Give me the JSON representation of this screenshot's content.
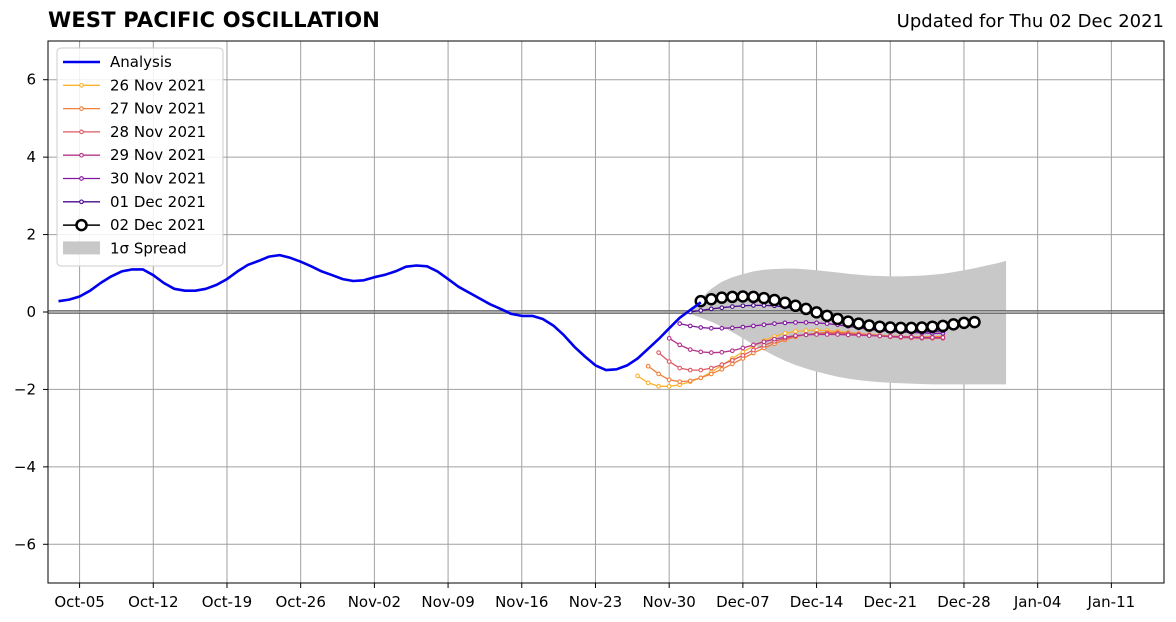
{
  "header": {
    "title": "WEST PACIFIC OSCILLATION",
    "updated": "Updated for Thu 02 Dec 2021"
  },
  "chart_data": {
    "type": "line",
    "title": "WEST PACIFIC OSCILLATION",
    "subtitle": "Updated for Thu 02 Dec 2021",
    "xlabel": "",
    "ylabel": "",
    "xlim": [
      "2021-10-02",
      "2022-01-16"
    ],
    "ylim": [
      -7,
      7
    ],
    "grid": true,
    "legend_position": "top-left",
    "x_ticks": [
      "Oct-05",
      "Oct-12",
      "Oct-19",
      "Oct-26",
      "Nov-02",
      "Nov-09",
      "Nov-16",
      "Nov-23",
      "Nov-30",
      "Dec-07",
      "Dec-14",
      "Dec-21",
      "Dec-28",
      "Jan-04",
      "Jan-11"
    ],
    "x_tick_dates": [
      "2021-10-05",
      "2021-10-12",
      "2021-10-19",
      "2021-10-26",
      "2021-11-02",
      "2021-11-09",
      "2021-11-16",
      "2021-11-23",
      "2021-11-30",
      "2021-12-07",
      "2021-12-14",
      "2021-12-21",
      "2021-12-28",
      "2022-01-04",
      "2022-01-11"
    ],
    "y_ticks": [
      6,
      4,
      2,
      0,
      -2,
      -4,
      -6
    ],
    "y_tick_labels": [
      "6",
      "4",
      "2",
      "0",
      "−2",
      "−4",
      "−6"
    ],
    "legend": [
      "Analysis",
      "26 Nov 2021",
      "27 Nov 2021",
      "28 Nov 2021",
      "29 Nov 2021",
      "30 Nov 2021",
      "01 Dec 2021",
      "02 Dec 2021",
      "1σ Spread"
    ],
    "analysis": {
      "name": "Analysis",
      "color": "#0000ee",
      "start": "2021-10-03",
      "values": [
        0.28,
        0.32,
        0.4,
        0.55,
        0.75,
        0.92,
        1.05,
        1.1,
        1.1,
        0.95,
        0.75,
        0.6,
        0.55,
        0.55,
        0.6,
        0.7,
        0.85,
        1.05,
        1.22,
        1.32,
        1.43,
        1.47,
        1.4,
        1.3,
        1.18,
        1.05,
        0.95,
        0.85,
        0.8,
        0.82,
        0.9,
        0.96,
        1.05,
        1.17,
        1.2,
        1.18,
        1.05,
        0.85,
        0.65,
        0.5,
        0.35,
        0.2,
        0.08,
        -0.05,
        -0.1,
        -0.1,
        -0.18,
        -0.35,
        -0.6,
        -0.9,
        -1.15,
        -1.38,
        -1.5,
        -1.48,
        -1.38,
        -1.2,
        -0.95,
        -0.7,
        -0.42,
        -0.15,
        0.05,
        0.25
      ]
    },
    "forecasts": [
      {
        "name": "26 Nov 2021",
        "color": "#fcb22d",
        "start": "2021-11-27",
        "values": [
          -1.65,
          -1.83,
          -1.92,
          -1.92,
          -1.88,
          -1.8,
          -1.7,
          -1.55,
          -1.38,
          -1.2,
          -1.03,
          -0.88,
          -0.74,
          -0.63,
          -0.55,
          -0.5,
          -0.48,
          -0.47,
          -0.48,
          -0.5,
          -0.53,
          -0.56,
          -0.59,
          -0.62,
          -0.64,
          -0.65,
          -0.66,
          -0.66,
          -0.66,
          -0.65
        ]
      },
      {
        "name": "27 Nov 2021",
        "color": "#f0803c",
        "start": "2021-11-28",
        "values": [
          -1.4,
          -1.6,
          -1.75,
          -1.8,
          -1.78,
          -1.7,
          -1.6,
          -1.48,
          -1.34,
          -1.2,
          -1.06,
          -0.93,
          -0.82,
          -0.72,
          -0.64,
          -0.58,
          -0.55,
          -0.53,
          -0.53,
          -0.54,
          -0.56,
          -0.58,
          -0.6,
          -0.62,
          -0.63,
          -0.64,
          -0.64,
          -0.64,
          -0.63
        ]
      },
      {
        "name": "28 Nov 2021",
        "color": "#dc5a64",
        "start": "2021-11-29",
        "values": [
          -1.05,
          -1.28,
          -1.45,
          -1.5,
          -1.5,
          -1.45,
          -1.36,
          -1.25,
          -1.12,
          -0.98,
          -0.86,
          -0.76,
          -0.68,
          -0.62,
          -0.58,
          -0.56,
          -0.55,
          -0.55,
          -0.56,
          -0.58,
          -0.6,
          -0.62,
          -0.64,
          -0.66,
          -0.67,
          -0.68,
          -0.68,
          -0.68
        ]
      },
      {
        "name": "29 Nov 2021",
        "color": "#b4348a",
        "start": "2021-11-30",
        "values": [
          -0.68,
          -0.85,
          -0.97,
          -1.03,
          -1.05,
          -1.04,
          -1.0,
          -0.93,
          -0.85,
          -0.77,
          -0.7,
          -0.65,
          -0.61,
          -0.59,
          -0.58,
          -0.58,
          -0.58,
          -0.59,
          -0.6,
          -0.61,
          -0.62,
          -0.63,
          -0.64,
          -0.65,
          -0.66,
          -0.66,
          -0.66
        ]
      },
      {
        "name": "30 Nov 2021",
        "color": "#8218a0",
        "start": "2021-12-01",
        "values": [
          -0.3,
          -0.36,
          -0.4,
          -0.42,
          -0.42,
          -0.41,
          -0.39,
          -0.36,
          -0.33,
          -0.3,
          -0.28,
          -0.27,
          -0.27,
          -0.28,
          -0.3,
          -0.33,
          -0.37,
          -0.41,
          -0.45,
          -0.48,
          -0.5,
          -0.52,
          -0.53,
          -0.54,
          -0.55,
          -0.55
        ]
      },
      {
        "name": "01 Dec 2021",
        "color": "#4a0a8c",
        "start": "2021-12-02",
        "values": [
          0.0,
          0.04,
          0.08,
          0.11,
          0.14,
          0.16,
          0.17,
          0.17,
          0.16,
          0.13,
          0.08,
          0.02,
          -0.05,
          -0.13,
          -0.21,
          -0.29,
          -0.36,
          -0.42,
          -0.46,
          -0.49,
          -0.5,
          -0.51,
          -0.51,
          -0.5,
          -0.49
        ]
      },
      {
        "name": "02 Dec 2021",
        "color": "#000000",
        "start": "2021-12-03",
        "values": [
          0.28,
          0.33,
          0.37,
          0.39,
          0.4,
          0.39,
          0.36,
          0.31,
          0.24,
          0.16,
          0.08,
          -0.01,
          -0.1,
          -0.18,
          -0.25,
          -0.3,
          -0.35,
          -0.38,
          -0.4,
          -0.41,
          -0.41,
          -0.4,
          -0.38,
          -0.36,
          -0.32,
          -0.28,
          -0.26
        ]
      }
    ],
    "spread": {
      "name": "1σ Spread",
      "color": "#c8c8c8",
      "start": "2021-12-02",
      "upper": [
        0.05,
        0.35,
        0.6,
        0.78,
        0.9,
        0.98,
        1.05,
        1.09,
        1.11,
        1.12,
        1.12,
        1.1,
        1.08,
        1.05,
        1.02,
        0.99,
        0.96,
        0.94,
        0.93,
        0.92,
        0.92,
        0.93,
        0.94,
        0.96,
        0.99,
        1.03,
        1.08,
        1.13,
        1.19,
        1.25,
        1.32
      ],
      "lower": [
        -0.05,
        -0.15,
        -0.25,
        -0.38,
        -0.52,
        -0.68,
        -0.84,
        -0.99,
        -1.13,
        -1.26,
        -1.37,
        -1.46,
        -1.54,
        -1.61,
        -1.67,
        -1.72,
        -1.76,
        -1.79,
        -1.81,
        -1.83,
        -1.84,
        -1.85,
        -1.86,
        -1.87,
        -1.87,
        -1.87,
        -1.87,
        -1.87,
        -1.87,
        -1.87,
        -1.87
      ]
    }
  }
}
